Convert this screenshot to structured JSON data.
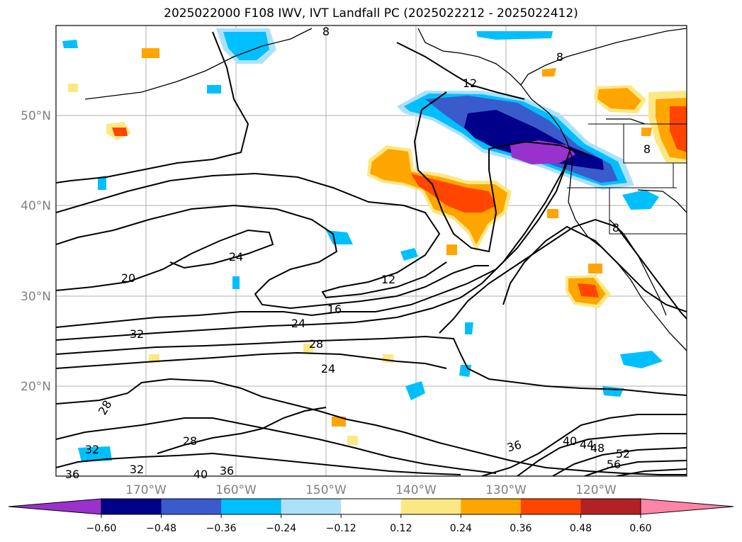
{
  "title": "2025022000 F108 IWV, IVT Landfall PC (2025022212 - 2025022412)",
  "map": {
    "lat_labels": [
      "50°N",
      "40°N",
      "30°N",
      "20°N"
    ],
    "lon_labels": [
      "170°W",
      "160°W",
      "150°W",
      "140°W",
      "130°W",
      "120°W"
    ],
    "contour_labels": [
      "12",
      "8",
      "8",
      "8",
      "8",
      "24",
      "20",
      "12",
      "16",
      "24",
      "32",
      "28",
      "24",
      "28",
      "32",
      "28",
      "32",
      "36",
      "40",
      "36",
      "36",
      "40",
      "44",
      "48",
      "52",
      "56"
    ]
  },
  "colorbar": {
    "colors": [
      "#9932CC",
      "#00008B",
      "#3A5BCC",
      "#00BFFF",
      "#ADE1FA",
      "#FFFFFF",
      "#FCE883",
      "#FFA500",
      "#FF4500",
      "#B22222",
      "#FF85A8"
    ],
    "tick_labels": [
      "−0.60",
      "−0.48",
      "−0.36",
      "−0.24",
      "−0.12",
      "0.12",
      "0.24",
      "0.36",
      "0.48",
      "0.60"
    ]
  }
}
